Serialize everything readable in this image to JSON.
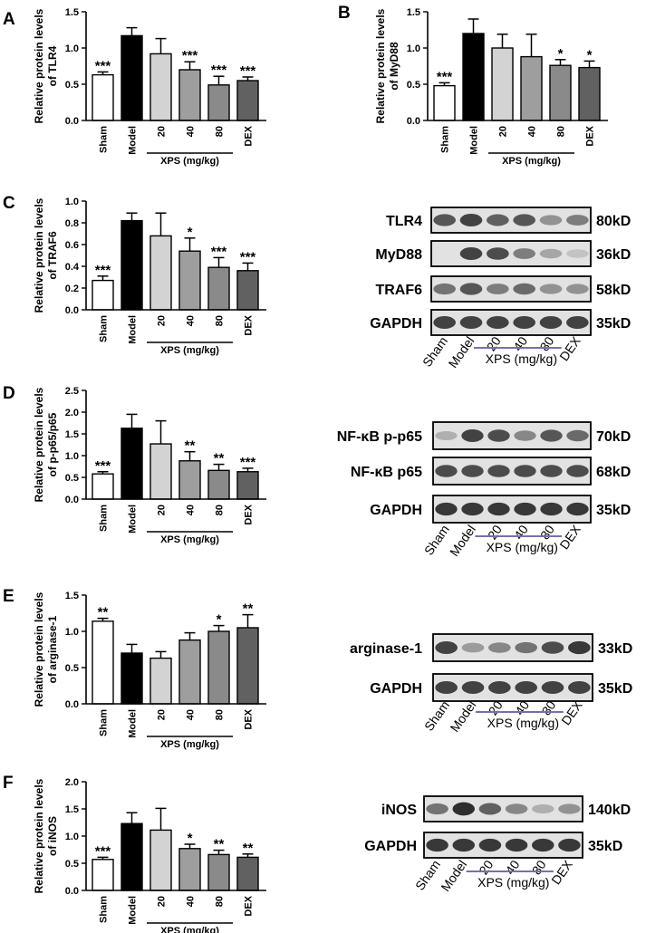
{
  "colors": {
    "Sham": "#ffffff",
    "Model": "#000000",
    "20": "#d3d3d3",
    "40": "#9e9e9e",
    "80": "#8a8a8a",
    "DEX": "#616161"
  },
  "chart_data": [
    {
      "panel": "A",
      "type": "bar",
      "ylabel": [
        "Relative protein levels",
        "of TLR4"
      ],
      "ylim": [
        0,
        1.5
      ],
      "yticks": [
        "0.0",
        "0.5",
        "1.0",
        "1.5"
      ],
      "categories": [
        "Sham",
        "Model",
        "20",
        "40",
        "80",
        "DEX"
      ],
      "values": [
        0.63,
        1.17,
        0.92,
        0.7,
        0.49,
        0.55
      ],
      "errors": [
        0.04,
        0.11,
        0.21,
        0.11,
        0.12,
        0.05
      ],
      "stars": [
        "***",
        "",
        "",
        "***",
        "***",
        "***"
      ],
      "group_label": "XPS (mg/kg)"
    },
    {
      "panel": "B",
      "type": "bar",
      "ylabel": [
        "Relative protein levels",
        "of MyD88"
      ],
      "ylim": [
        0,
        1.5
      ],
      "yticks": [
        "0.0",
        "0.5",
        "1.0",
        "1.5"
      ],
      "categories": [
        "Sham",
        "Model",
        "20",
        "40",
        "80",
        "DEX"
      ],
      "values": [
        0.48,
        1.2,
        1.0,
        0.88,
        0.76,
        0.73
      ],
      "errors": [
        0.04,
        0.2,
        0.19,
        0.31,
        0.08,
        0.09
      ],
      "stars": [
        "***",
        "",
        "",
        "",
        "*",
        "*"
      ],
      "group_label": "XPS (mg/kg)"
    },
    {
      "panel": "C",
      "type": "bar",
      "ylabel": [
        "Relative protein levels",
        "of TRAF6"
      ],
      "ylim": [
        0,
        1.0
      ],
      "yticks": [
        "0.0",
        "0.2",
        "0.4",
        "0.6",
        "0.8",
        "1.0"
      ],
      "categories": [
        "Sham",
        "Model",
        "20",
        "40",
        "80",
        "DEX"
      ],
      "values": [
        0.27,
        0.82,
        0.68,
        0.54,
        0.39,
        0.36
      ],
      "errors": [
        0.04,
        0.07,
        0.21,
        0.12,
        0.09,
        0.07
      ],
      "stars": [
        "***",
        "",
        "",
        "*",
        "***",
        "***"
      ],
      "group_label": "XPS (mg/kg)"
    },
    {
      "panel": "D",
      "type": "bar",
      "ylabel": [
        "Relative protein levels",
        "of p-p65/p65"
      ],
      "ylim": [
        0,
        2.5
      ],
      "yticks": [
        "0.0",
        "0.5",
        "1.0",
        "1.5",
        "2.0",
        "2.5"
      ],
      "categories": [
        "Sham",
        "Model",
        "20",
        "40",
        "80",
        "DEX"
      ],
      "values": [
        0.58,
        1.63,
        1.27,
        0.88,
        0.66,
        0.63
      ],
      "errors": [
        0.05,
        0.32,
        0.53,
        0.21,
        0.14,
        0.08
      ],
      "stars": [
        "***",
        "",
        "",
        "**",
        "**",
        "***"
      ],
      "group_label": "XPS (mg/kg)"
    },
    {
      "panel": "E",
      "type": "bar",
      "ylabel": [
        "Relative protein levels",
        "of arginase-1"
      ],
      "ylim": [
        0,
        1.5
      ],
      "yticks": [
        "0.0",
        "0.5",
        "1.0",
        "1.5"
      ],
      "categories": [
        "Sham",
        "Model",
        "20",
        "40",
        "80",
        "DEX"
      ],
      "values": [
        1.14,
        0.7,
        0.63,
        0.88,
        1.0,
        1.05
      ],
      "errors": [
        0.04,
        0.12,
        0.09,
        0.1,
        0.08,
        0.18
      ],
      "stars": [
        "**",
        "",
        "",
        "",
        "*",
        "**"
      ],
      "group_label": "XPS (mg/kg)"
    },
    {
      "panel": "F",
      "type": "bar",
      "ylabel": [
        "Relative protein levels",
        "of iNOS"
      ],
      "ylim": [
        0,
        2.0
      ],
      "yticks": [
        "0.0",
        "0.5",
        "1.0",
        "1.5",
        "2.0"
      ],
      "categories": [
        "Sham",
        "Model",
        "20",
        "40",
        "80",
        "DEX"
      ],
      "values": [
        0.57,
        1.23,
        1.11,
        0.77,
        0.66,
        0.61
      ],
      "errors": [
        0.04,
        0.2,
        0.4,
        0.08,
        0.08,
        0.06
      ],
      "stars": [
        "***",
        "",
        "",
        "*",
        "**",
        "**"
      ],
      "group_label": "XPS (mg/kg)"
    }
  ],
  "blots": [
    {
      "id": "blot-c",
      "lanes": [
        "Sham",
        "Model",
        "20",
        "40",
        "80",
        "DEX"
      ],
      "group_label": "XPS (mg/kg)",
      "rows": [
        {
          "name": "TLR4",
          "size": "80kD",
          "bands": [
            0.75,
            0.85,
            0.7,
            0.75,
            0.45,
            0.55
          ]
        },
        {
          "name": "MyD88",
          "size": "36kD",
          "bands": [
            0.05,
            0.85,
            0.8,
            0.55,
            0.35,
            0.2
          ]
        },
        {
          "name": "TRAF6",
          "size": "58kD",
          "bands": [
            0.6,
            0.75,
            0.55,
            0.65,
            0.45,
            0.45
          ]
        },
        {
          "name": "GAPDH",
          "size": "35kD",
          "bands": [
            0.85,
            0.85,
            0.85,
            0.85,
            0.85,
            0.85
          ]
        }
      ]
    },
    {
      "id": "blot-d",
      "lanes": [
        "Sham",
        "Model",
        "20",
        "40",
        "80",
        "DEX"
      ],
      "group_label": "XPS (mg/kg)",
      "rows": [
        {
          "name": "NF-κB p-p65",
          "size": "70kD",
          "bands": [
            0.3,
            0.85,
            0.8,
            0.5,
            0.75,
            0.65
          ]
        },
        {
          "name": "NF-κB p65",
          "size": "68kD",
          "bands": [
            0.8,
            0.8,
            0.8,
            0.8,
            0.8,
            0.8
          ]
        },
        {
          "name": "GAPDH",
          "size": "35kD",
          "bands": [
            0.9,
            0.9,
            0.9,
            0.9,
            0.9,
            0.9
          ]
        }
      ]
    },
    {
      "id": "blot-e",
      "lanes": [
        "Sham",
        "Model",
        "20",
        "40",
        "80",
        "DEX"
      ],
      "group_label": "XPS (mg/kg)",
      "rows": [
        {
          "name": "arginase-1",
          "size": "33kD",
          "bands": [
            0.85,
            0.4,
            0.5,
            0.6,
            0.8,
            0.9
          ]
        },
        {
          "name": "GAPDH",
          "size": "35kD",
          "bands": [
            0.85,
            0.85,
            0.85,
            0.85,
            0.85,
            0.85
          ]
        }
      ]
    },
    {
      "id": "blot-f",
      "lanes": [
        "Sham",
        "Model",
        "20",
        "40",
        "80",
        "DEX"
      ],
      "group_label": "XPS (mg/kg)",
      "rows": [
        {
          "name": "iNOS",
          "size": "140kD",
          "bands": [
            0.6,
            0.95,
            0.7,
            0.5,
            0.3,
            0.45
          ]
        },
        {
          "name": "GAPDH",
          "size": "35kD",
          "bands": [
            0.9,
            0.9,
            0.9,
            0.9,
            0.9,
            0.9
          ]
        }
      ]
    }
  ]
}
